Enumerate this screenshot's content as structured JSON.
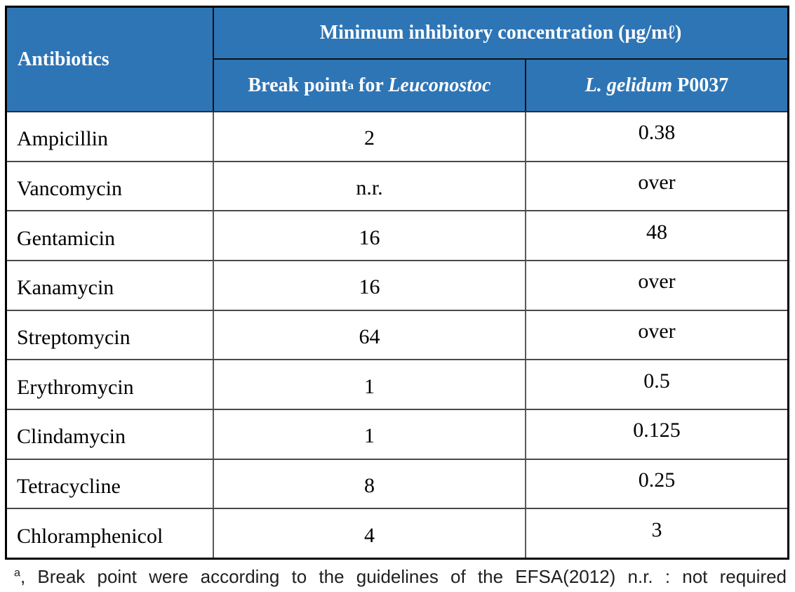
{
  "colors": {
    "header_bg": "#2E75B6",
    "header_text": "#FFFFFF",
    "body_text": "#000000",
    "outer_border": "#000000"
  },
  "table": {
    "header": {
      "antibiotics": "Antibiotics",
      "mic_group_title": "Minimum inhibitory concentration (μg/mℓ)",
      "break_point_col": {
        "label": "Break point",
        "sup": "a",
        "connector": " for ",
        "species": "Leuconostoc"
      },
      "strain_col": {
        "species": "L. gelidum",
        "code": " P0037"
      }
    },
    "rows": [
      {
        "antibiotic": "Ampicillin",
        "break_point": "2",
        "strain_mic": "0.38"
      },
      {
        "antibiotic": "Vancomycin",
        "break_point": "n.r.",
        "strain_mic": "over"
      },
      {
        "antibiotic": "Gentamicin",
        "break_point": "16",
        "strain_mic": "48"
      },
      {
        "antibiotic": "Kanamycin",
        "break_point": "16",
        "strain_mic": "over"
      },
      {
        "antibiotic": "Streptomycin",
        "break_point": "64",
        "strain_mic": "over"
      },
      {
        "antibiotic": "Erythromycin",
        "break_point": "1",
        "strain_mic": "0.5"
      },
      {
        "antibiotic": "Clindamycin",
        "break_point": "1",
        "strain_mic": "0.125"
      },
      {
        "antibiotic": "Tetracycline",
        "break_point": "8",
        "strain_mic": "0.25"
      },
      {
        "antibiotic": "Chloramphenicol",
        "break_point": "4",
        "strain_mic": "3"
      }
    ]
  },
  "footnote": {
    "sup": "a",
    "text": ", Break point were according to the guidelines of the EFSA(2012) n.r. : not required"
  }
}
